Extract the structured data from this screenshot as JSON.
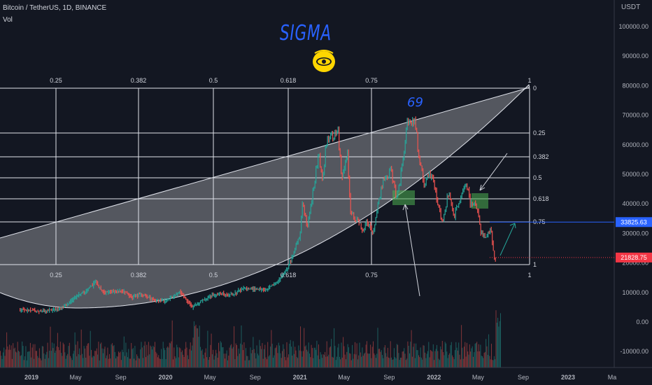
{
  "header": {
    "symbol_line": "Bitcoin / TetherUS, 1D, BINANCE",
    "volume_label": "Vol"
  },
  "annotations": {
    "title": "SIGMA",
    "peak_note": "69"
  },
  "colors": {
    "background": "#131722",
    "up": "#26a69a",
    "down": "#ef5350",
    "price_tag_current": "#2962ff",
    "price_tag_low": "#f23645",
    "sigma_text": "#2962ff",
    "eye_icon": "#ffd600",
    "green_zone": "#4caf50"
  },
  "chart_data": {
    "type": "line",
    "title": "Bitcoin / TetherUS, 1D, BINANCE",
    "ylabel": "USDT",
    "ylim": [
      -15000,
      105000
    ],
    "xlim": [
      "2018-11",
      "2023-06"
    ],
    "grid": false,
    "x_ticks": [
      "2019",
      "May",
      "Sep",
      "2020",
      "May",
      "Sep",
      "2021",
      "May",
      "Sep",
      "2022",
      "May",
      "Sep",
      "2023",
      "Ma"
    ],
    "y_ticks": [
      "100000.00",
      "90000.00",
      "80000.00",
      "70000.00",
      "60000.00",
      "50000.00",
      "40000.00",
      "30000.00",
      "20000.00",
      "10000.00",
      "0.00",
      "-10000.00"
    ],
    "series": [
      {
        "values": [
          [
            "2018-12-01",
            4000
          ],
          [
            "2019-01-01",
            3800
          ],
          [
            "2019-02-01",
            3600
          ],
          [
            "2019-03-01",
            4000
          ],
          [
            "2019-04-01",
            5200
          ],
          [
            "2019-05-01",
            8500
          ],
          [
            "2019-06-01",
            11000
          ],
          [
            "2019-06-26",
            13500
          ],
          [
            "2019-07-15",
            10000
          ],
          [
            "2019-08-15",
            10500
          ],
          [
            "2019-09-15",
            10200
          ],
          [
            "2019-10-01",
            8300
          ],
          [
            "2019-10-26",
            9500
          ],
          [
            "2019-12-01",
            7300
          ],
          [
            "2020-01-01",
            7200
          ],
          [
            "2020-02-12",
            10300
          ],
          [
            "2020-03-12",
            5000
          ],
          [
            "2020-04-01",
            6600
          ],
          [
            "2020-05-01",
            8800
          ],
          [
            "2020-06-01",
            9500
          ],
          [
            "2020-07-01",
            9200
          ],
          [
            "2020-08-01",
            11500
          ],
          [
            "2020-09-01",
            11000
          ],
          [
            "2020-10-01",
            10800
          ],
          [
            "2020-11-01",
            13700
          ],
          [
            "2020-12-01",
            19000
          ],
          [
            "2021-01-01",
            29000
          ],
          [
            "2021-01-08",
            40000
          ],
          [
            "2021-01-22",
            32000
          ],
          [
            "2021-02-21",
            57000
          ],
          [
            "2021-03-05",
            48000
          ],
          [
            "2021-03-13",
            61000
          ],
          [
            "2021-04-14",
            64800
          ],
          [
            "2021-04-25",
            49000
          ],
          [
            "2021-05-10",
            58000
          ],
          [
            "2021-05-19",
            37000
          ],
          [
            "2021-06-01",
            35000
          ],
          [
            "2021-06-22",
            31000
          ],
          [
            "2021-07-01",
            34000
          ],
          [
            "2021-07-20",
            29800
          ],
          [
            "2021-08-01",
            40000
          ],
          [
            "2021-08-14",
            47000
          ],
          [
            "2021-09-06",
            52000
          ],
          [
            "2021-09-21",
            41000
          ],
          [
            "2021-10-01",
            48000
          ],
          [
            "2021-10-20",
            67000
          ],
          [
            "2021-11-10",
            69000
          ],
          [
            "2021-11-20",
            57000
          ],
          [
            "2021-12-04",
            47000
          ],
          [
            "2021-12-27",
            51000
          ],
          [
            "2022-01-10",
            41000
          ],
          [
            "2022-01-24",
            34000
          ],
          [
            "2022-02-10",
            44000
          ],
          [
            "2022-02-24",
            35000
          ],
          [
            "2022-03-28",
            48000
          ],
          [
            "2022-04-11",
            39500
          ],
          [
            "2022-04-25",
            40500
          ],
          [
            "2022-05-09",
            30000
          ],
          [
            "2022-05-20",
            29000
          ],
          [
            "2022-06-05",
            31000
          ],
          [
            "2022-06-13",
            22000
          ],
          [
            "2022-06-17",
            20000
          ],
          [
            "2022-06-18",
            21828.75
          ]
        ]
      }
    ],
    "price_tags": [
      "33825.63",
      "21828.75"
    ],
    "fib_levels_right": [
      "0",
      "0.25",
      "0.382",
      "0.5",
      "0.618",
      "0.75",
      "1"
    ],
    "fib_levels_top": [
      "0.25",
      "0.382",
      "0.5",
      "0.618",
      "0.75",
      "1"
    ],
    "fib_levels_bottom": [
      "0.25",
      "0.382",
      "0.5",
      "0.618",
      "0.75",
      "1"
    ]
  }
}
